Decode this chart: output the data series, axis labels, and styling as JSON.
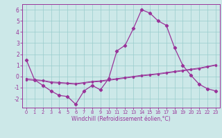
{
  "x": [
    0,
    1,
    2,
    3,
    4,
    5,
    6,
    7,
    8,
    9,
    10,
    11,
    12,
    13,
    14,
    15,
    16,
    17,
    18,
    19,
    20,
    21,
    22,
    23
  ],
  "y_main": [
    1.5,
    -0.3,
    -0.8,
    -1.3,
    -1.7,
    -1.8,
    -2.5,
    -1.3,
    -0.8,
    -1.2,
    -0.2,
    2.3,
    2.8,
    4.3,
    6.0,
    5.7,
    5.0,
    4.6,
    2.6,
    1.0,
    0.1,
    -0.7,
    -1.1,
    -1.3
  ],
  "y_line2": [
    -0.3,
    -0.35,
    -0.4,
    -0.55,
    -0.6,
    -0.65,
    -0.7,
    -0.6,
    -0.5,
    -0.45,
    -0.35,
    -0.25,
    -0.15,
    -0.05,
    0.05,
    0.12,
    0.2,
    0.3,
    0.4,
    0.5,
    0.6,
    0.7,
    0.85,
    1.0
  ],
  "y_line3": [
    -0.2,
    -0.28,
    -0.35,
    -0.48,
    -0.53,
    -0.58,
    -0.63,
    -0.54,
    -0.44,
    -0.39,
    -0.29,
    -0.19,
    -0.09,
    0.01,
    0.11,
    0.18,
    0.26,
    0.36,
    0.46,
    0.56,
    0.66,
    0.76,
    0.91,
    1.05
  ],
  "bg_color": "#cce8e8",
  "grid_color": "#99cccc",
  "line_color": "#993399",
  "xlabel": "Windchill (Refroidissement éolien,°C)",
  "xlim": [
    -0.5,
    23.5
  ],
  "ylim": [
    -2.8,
    6.5
  ],
  "yticks": [
    -2,
    -1,
    0,
    1,
    2,
    3,
    4,
    5,
    6
  ],
  "xticks": [
    0,
    1,
    2,
    3,
    4,
    5,
    6,
    7,
    8,
    9,
    10,
    11,
    12,
    13,
    14,
    15,
    16,
    17,
    18,
    19,
    20,
    21,
    22,
    23
  ]
}
